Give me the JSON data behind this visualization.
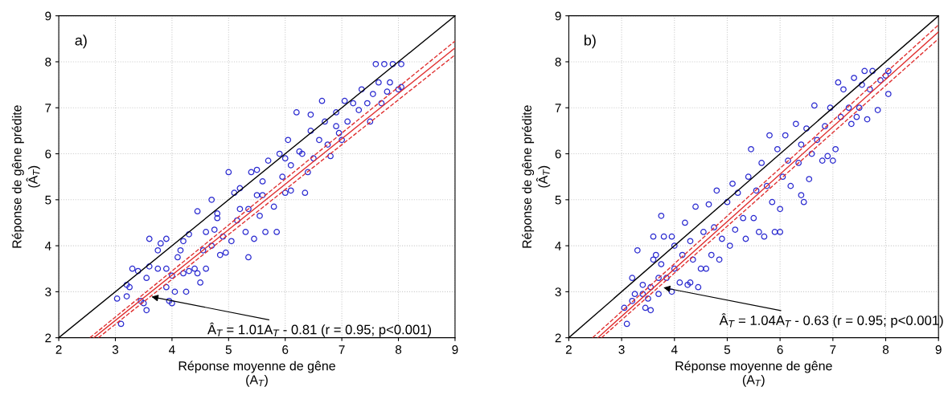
{
  "chart_data": [
    {
      "type": "scatter",
      "xlabel": "Réponse moyenne de gêne\n(A$_{T}$)",
      "ylabel": "Réponse de gêne prédite\n(Â$_{T}$)",
      "xlim": [
        2,
        9
      ],
      "ylim": [
        2,
        9
      ],
      "xticks": [
        2,
        3,
        4,
        5,
        6,
        7,
        8,
        9
      ],
      "yticks": [
        2,
        3,
        4,
        5,
        6,
        7,
        8,
        9
      ],
      "grid": true,
      "annotations": [
        "a)",
        {
          "text": "Â$_{T}$ = 1.01A$_{T}$ - 0.81 (r = 0.95; p<0.001)",
          "x": 3.6,
          "y": 2.9
        }
      ],
      "series": [
        {
          "marker": "circle",
          "color": "#2a2ad0",
          "x": [
            3.03,
            3.1,
            3.2,
            3.2,
            3.25,
            3.3,
            3.4,
            3.45,
            3.5,
            3.55,
            3.55,
            3.6,
            3.6,
            3.75,
            3.75,
            3.8,
            3.9,
            3.9,
            3.9,
            3.95,
            4.0,
            4.05,
            4.0,
            4.1,
            4.15,
            4.2,
            4.25,
            4.3,
            4.3,
            4.45,
            4.45,
            4.5,
            4.55,
            4.6,
            4.7,
            4.7,
            4.75,
            4.8,
            4.85,
            4.9,
            4.95,
            5.0,
            5.05,
            5.1,
            5.15,
            5.2,
            5.3,
            5.35,
            5.35,
            5.4,
            5.45,
            5.5,
            5.55,
            5.6,
            5.65,
            5.7,
            5.8,
            5.85,
            5.9,
            5.95,
            6.0,
            6.05,
            6.1,
            6.1,
            6.2,
            6.25,
            6.35,
            6.4,
            6.45,
            6.45,
            6.5,
            6.6,
            6.65,
            6.7,
            6.75,
            6.8,
            6.9,
            6.95,
            7.0,
            7.05,
            7.1,
            7.2,
            7.3,
            7.35,
            7.45,
            7.5,
            7.55,
            7.6,
            7.65,
            7.7,
            7.75,
            7.8,
            7.85,
            7.9,
            8.0,
            8.05,
            8.05,
            4.4,
            4.6,
            5.2,
            5.6,
            6.0,
            6.3,
            6.9,
            4.2,
            4.8,
            5.5
          ],
          "values": [
            2.85,
            2.3,
            2.9,
            3.15,
            3.1,
            3.5,
            3.45,
            2.8,
            2.75,
            2.6,
            3.3,
            3.55,
            4.15,
            3.5,
            3.9,
            4.05,
            4.15,
            3.1,
            3.5,
            2.8,
            2.75,
            3.0,
            3.35,
            3.75,
            3.9,
            4.1,
            3.0,
            3.45,
            4.25,
            4.75,
            3.4,
            3.2,
            3.9,
            3.5,
            4.0,
            5.0,
            4.35,
            4.6,
            3.8,
            4.2,
            3.85,
            5.6,
            4.1,
            5.15,
            4.55,
            5.25,
            4.3,
            3.75,
            4.8,
            5.6,
            4.15,
            5.65,
            4.65,
            5.4,
            4.3,
            5.85,
            4.85,
            4.3,
            6.0,
            5.5,
            5.15,
            6.3,
            5.75,
            5.2,
            6.9,
            6.05,
            5.15,
            5.6,
            6.85,
            6.5,
            5.9,
            6.3,
            7.15,
            6.7,
            6.2,
            5.95,
            6.9,
            6.45,
            6.3,
            7.15,
            6.7,
            7.1,
            6.95,
            7.4,
            7.1,
            6.7,
            7.3,
            7.95,
            7.55,
            7.1,
            7.95,
            7.35,
            7.55,
            7.95,
            7.4,
            7.95,
            7.45,
            3.5,
            4.3,
            4.8,
            5.1,
            5.9,
            6.0,
            6.6,
            3.4,
            4.7,
            5.1
          ]
        },
        {
          "type": "line",
          "color": "#000000",
          "line_style": "solid",
          "x": [
            2,
            9
          ],
          "values": [
            2,
            9
          ]
        },
        {
          "type": "line",
          "color": "#e03030",
          "line_style": "solid",
          "x": [
            2.62,
            9
          ],
          "values": [
            2.0,
            8.3
          ]
        },
        {
          "type": "line",
          "color": "#e03030",
          "line_style": "dashed",
          "x": [
            2.55,
            9
          ],
          "values": [
            2.0,
            8.45
          ]
        },
        {
          "type": "line",
          "color": "#e03030",
          "line_style": "dashed",
          "x": [
            2.7,
            9
          ],
          "values": [
            2.0,
            8.15
          ]
        }
      ]
    },
    {
      "type": "scatter",
      "xlabel": "Réponse moyenne de gêne\n(A$_{T}$)",
      "ylabel": "Réponse de gêne prédite\n(Â$_{T}$)",
      "xlim": [
        2,
        9
      ],
      "ylim": [
        2,
        9
      ],
      "xticks": [
        2,
        3,
        4,
        5,
        6,
        7,
        8,
        9
      ],
      "yticks": [
        2,
        3,
        4,
        5,
        6,
        7,
        8,
        9
      ],
      "grid": true,
      "annotations": [
        "b)",
        {
          "text": "Â$_{T}$ = 1.04A$_{T}$ - 0.63 (r = 0.95; p<0.001)",
          "x": 3.75,
          "y": 3.1
        }
      ],
      "series": [
        {
          "marker": "circle",
          "color": "#2a2ad0",
          "x": [
            3.05,
            3.1,
            3.2,
            3.2,
            3.25,
            3.3,
            3.4,
            3.4,
            3.45,
            3.5,
            3.55,
            3.55,
            3.6,
            3.6,
            3.65,
            3.7,
            3.7,
            3.75,
            3.75,
            3.8,
            3.85,
            3.95,
            3.95,
            4.0,
            4.0,
            4.1,
            4.15,
            4.2,
            4.25,
            4.3,
            4.3,
            4.35,
            4.4,
            4.45,
            4.5,
            4.55,
            4.6,
            4.65,
            4.7,
            4.75,
            4.8,
            4.85,
            4.9,
            5.0,
            5.05,
            5.1,
            5.15,
            5.2,
            5.3,
            5.35,
            5.4,
            5.45,
            5.5,
            5.55,
            5.6,
            5.65,
            5.7,
            5.75,
            5.8,
            5.85,
            5.9,
            5.95,
            6.0,
            6.0,
            6.05,
            6.1,
            6.15,
            6.2,
            6.3,
            6.35,
            6.4,
            6.4,
            6.45,
            6.5,
            6.55,
            6.6,
            6.65,
            6.7,
            6.8,
            6.85,
            6.9,
            6.95,
            7.0,
            7.05,
            7.1,
            7.15,
            7.2,
            7.3,
            7.35,
            7.4,
            7.45,
            7.5,
            7.55,
            7.6,
            7.65,
            7.7,
            7.75,
            7.85,
            7.9,
            8.0,
            8.05,
            8.05
          ],
          "values": [
            2.65,
            2.3,
            2.8,
            3.3,
            2.95,
            3.9,
            3.15,
            2.95,
            2.65,
            2.85,
            2.6,
            3.1,
            3.7,
            4.2,
            3.8,
            2.95,
            3.3,
            4.65,
            3.6,
            4.2,
            3.3,
            4.2,
            3.0,
            3.5,
            4.0,
            3.2,
            3.8,
            4.5,
            3.15,
            3.2,
            4.1,
            3.7,
            4.85,
            3.1,
            3.5,
            4.3,
            3.5,
            4.9,
            3.8,
            4.4,
            5.2,
            3.7,
            4.15,
            4.95,
            4.0,
            5.35,
            4.35,
            5.15,
            4.6,
            4.15,
            5.5,
            6.1,
            4.6,
            5.2,
            4.3,
            5.8,
            4.2,
            5.3,
            6.4,
            4.95,
            4.3,
            6.1,
            4.8,
            4.3,
            5.5,
            6.4,
            5.85,
            5.3,
            6.65,
            5.8,
            6.2,
            5.1,
            4.95,
            6.55,
            5.45,
            6.0,
            7.05,
            6.3,
            5.85,
            6.6,
            5.95,
            7.0,
            5.85,
            6.1,
            7.55,
            6.8,
            7.4,
            7.0,
            6.65,
            7.65,
            6.8,
            7.0,
            7.5,
            7.8,
            6.75,
            7.4,
            7.8,
            6.95,
            7.6,
            7.7,
            7.3,
            7.8
          ]
        },
        {
          "type": "line",
          "color": "#000000",
          "line_style": "solid",
          "x": [
            2,
            9
          ],
          "values": [
            2,
            9
          ]
        },
        {
          "type": "line",
          "color": "#e03030",
          "line_style": "solid",
          "x": [
            2.55,
            9
          ],
          "values": [
            2.0,
            8.65
          ]
        },
        {
          "type": "line",
          "color": "#e03030",
          "line_style": "dashed",
          "x": [
            2.45,
            9
          ],
          "values": [
            2.0,
            8.8
          ]
        },
        {
          "type": "line",
          "color": "#e03030",
          "line_style": "dashed",
          "x": [
            2.62,
            9
          ],
          "values": [
            2.0,
            8.5
          ]
        }
      ]
    }
  ]
}
